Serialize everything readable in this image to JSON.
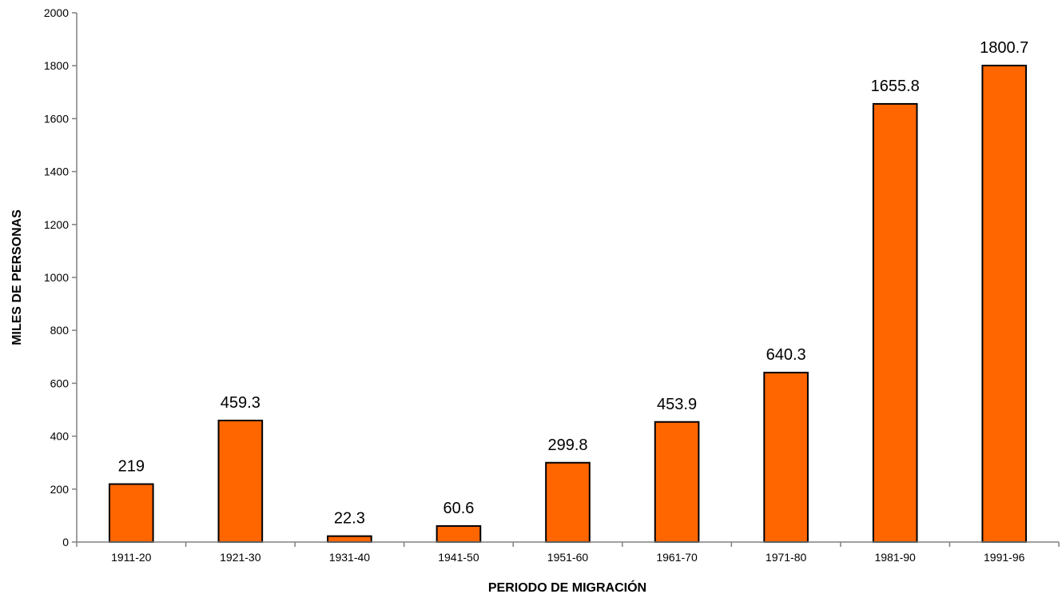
{
  "chart_data": {
    "type": "bar",
    "categories": [
      "1911-20",
      "1921-30",
      "1931-40",
      "1941-50",
      "1951-60",
      "1961-70",
      "1971-80",
      "1981-90",
      "1991-96"
    ],
    "values": [
      219,
      459.3,
      22.3,
      60.6,
      299.8,
      453.9,
      640.3,
      1655.8,
      1800.7
    ],
    "value_labels": [
      "219",
      "459.3",
      "22.3",
      "60.6",
      "299.8",
      "453.9",
      "640.3",
      "1655.8",
      "1800.7"
    ],
    "title": "",
    "xlabel": "PERIODO DE MIGRACIÓN",
    "ylabel": "MILES DE PERSONAS",
    "ylim": [
      0,
      2000
    ],
    "yticks": [
      0,
      200,
      400,
      600,
      800,
      1000,
      1200,
      1400,
      1600,
      1800,
      2000
    ],
    "grid": false,
    "legend": "none",
    "bar_color": "#ff6600",
    "bar_edge_color": "#000000"
  }
}
